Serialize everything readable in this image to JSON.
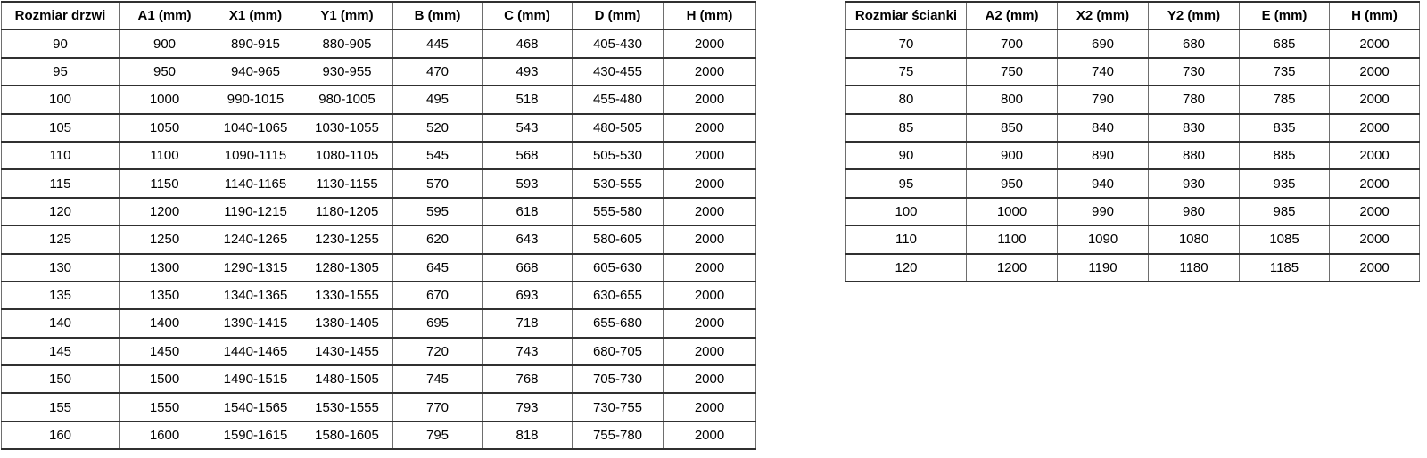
{
  "door_table": {
    "title": "Rozmiar drzwi",
    "headers": [
      "Rozmiar drzwi",
      "A1 (mm)",
      "X1 (mm)",
      "Y1 (mm)",
      "B (mm)",
      "C (mm)",
      "D (mm)",
      "H (mm)"
    ],
    "rows": [
      [
        "90",
        "900",
        "890-915",
        "880-905",
        "445",
        "468",
        "405-430",
        "2000"
      ],
      [
        "95",
        "950",
        "940-965",
        "930-955",
        "470",
        "493",
        "430-455",
        "2000"
      ],
      [
        "100",
        "1000",
        "990-1015",
        "980-1005",
        "495",
        "518",
        "455-480",
        "2000"
      ],
      [
        "105",
        "1050",
        "1040-1065",
        "1030-1055",
        "520",
        "543",
        "480-505",
        "2000"
      ],
      [
        "110",
        "1100",
        "1090-1115",
        "1080-1105",
        "545",
        "568",
        "505-530",
        "2000"
      ],
      [
        "115",
        "1150",
        "1140-1165",
        "1130-1155",
        "570",
        "593",
        "530-555",
        "2000"
      ],
      [
        "120",
        "1200",
        "1190-1215",
        "1180-1205",
        "595",
        "618",
        "555-580",
        "2000"
      ],
      [
        "125",
        "1250",
        "1240-1265",
        "1230-1255",
        "620",
        "643",
        "580-605",
        "2000"
      ],
      [
        "130",
        "1300",
        "1290-1315",
        "1280-1305",
        "645",
        "668",
        "605-630",
        "2000"
      ],
      [
        "135",
        "1350",
        "1340-1365",
        "1330-1555",
        "670",
        "693",
        "630-655",
        "2000"
      ],
      [
        "140",
        "1400",
        "1390-1415",
        "1380-1405",
        "695",
        "718",
        "655-680",
        "2000"
      ],
      [
        "145",
        "1450",
        "1440-1465",
        "1430-1455",
        "720",
        "743",
        "680-705",
        "2000"
      ],
      [
        "150",
        "1500",
        "1490-1515",
        "1480-1505",
        "745",
        "768",
        "705-730",
        "2000"
      ],
      [
        "155",
        "1550",
        "1540-1565",
        "1530-1555",
        "770",
        "793",
        "730-755",
        "2000"
      ],
      [
        "160",
        "1600",
        "1590-1615",
        "1580-1605",
        "795",
        "818",
        "755-780",
        "2000"
      ]
    ]
  },
  "wall_table": {
    "title": "Rozmiar ścianki",
    "headers": [
      "Rozmiar ścianki",
      "A2 (mm)",
      "X2 (mm)",
      "Y2 (mm)",
      "E (mm)",
      "H (mm)"
    ],
    "rows": [
      [
        "70",
        "700",
        "690",
        "680",
        "685",
        "2000"
      ],
      [
        "75",
        "750",
        "740",
        "730",
        "735",
        "2000"
      ],
      [
        "80",
        "800",
        "790",
        "780",
        "785",
        "2000"
      ],
      [
        "85",
        "850",
        "840",
        "830",
        "835",
        "2000"
      ],
      [
        "90",
        "900",
        "890",
        "880",
        "885",
        "2000"
      ],
      [
        "95",
        "950",
        "940",
        "930",
        "935",
        "2000"
      ],
      [
        "100",
        "1000",
        "990",
        "980",
        "985",
        "2000"
      ],
      [
        "110",
        "1100",
        "1090",
        "1080",
        "1085",
        "2000"
      ],
      [
        "120",
        "1200",
        "1190",
        "1180",
        "1185",
        "2000"
      ]
    ]
  },
  "colors": {
    "background": "#ffffff",
    "text": "#000000",
    "border_horizontal": "#303030",
    "border_vertical": "#6e6e6e"
  }
}
